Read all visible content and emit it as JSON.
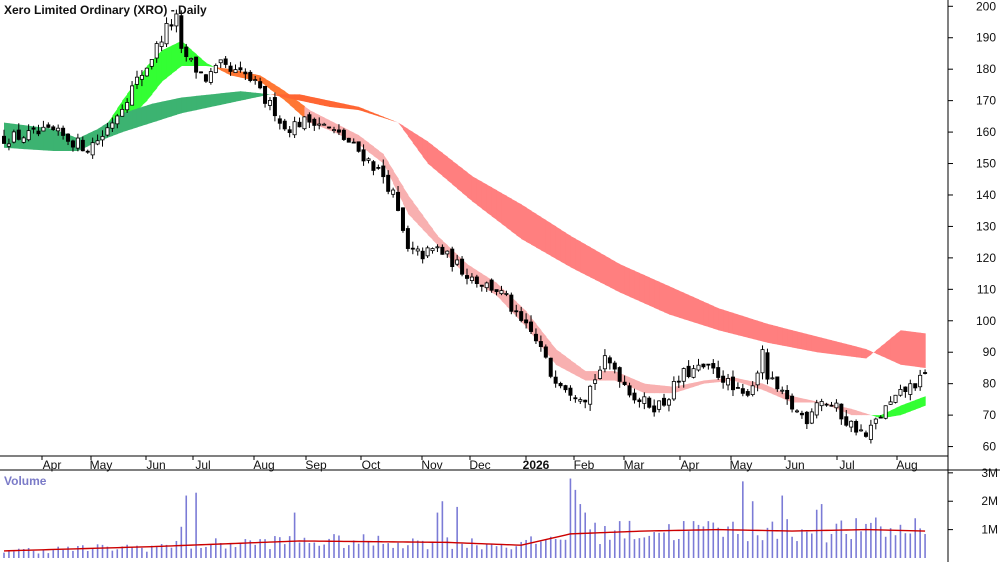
{
  "chart_data": {
    "type": "candlestick",
    "title": "Xero Limited Ordinary (XRO) - Daily",
    "x_tick_labels": [
      "Apr",
      "May",
      "Jun",
      "Jul",
      "Aug",
      "Sep",
      "Oct",
      "Nov",
      "Dec",
      "2026",
      "Feb",
      "Mar",
      "Apr",
      "May",
      "Jun",
      "Jul",
      "Aug"
    ],
    "y_tick_labels": [
      "200",
      "190",
      "180",
      "170",
      "160",
      "150",
      "140",
      "130",
      "120",
      "110",
      "100",
      "90",
      "80",
      "70",
      "60"
    ],
    "ylim": [
      57,
      202
    ],
    "price_path": [
      [
        0,
        158
      ],
      [
        10,
        160
      ],
      [
        14,
        157
      ],
      [
        17,
        155
      ],
      [
        20,
        159
      ],
      [
        23,
        166
      ],
      [
        26,
        174
      ],
      [
        29,
        181
      ],
      [
        31,
        187
      ],
      [
        33,
        193
      ],
      [
        35,
        196
      ],
      [
        36,
        185
      ],
      [
        37,
        184
      ],
      [
        39,
        180
      ],
      [
        41,
        177
      ],
      [
        44,
        181
      ],
      [
        46,
        179
      ],
      [
        49,
        178
      ],
      [
        51,
        175
      ],
      [
        53,
        170
      ],
      [
        55,
        167
      ],
      [
        57,
        161
      ],
      [
        60,
        163
      ],
      [
        63,
        164
      ],
      [
        66,
        161
      ],
      [
        69,
        158
      ],
      [
        72,
        154
      ],
      [
        74,
        151
      ],
      [
        77,
        146
      ],
      [
        79,
        140
      ],
      [
        82,
        122
      ],
      [
        85,
        121
      ],
      [
        88,
        123
      ],
      [
        91,
        119
      ],
      [
        94,
        115
      ],
      [
        97,
        112
      ],
      [
        100,
        110
      ],
      [
        102,
        107
      ],
      [
        104,
        101
      ],
      [
        107,
        96
      ],
      [
        109,
        91
      ],
      [
        111,
        83
      ],
      [
        113,
        81
      ],
      [
        115,
        78
      ],
      [
        118,
        76
      ],
      [
        120,
        82
      ],
      [
        122,
        87
      ],
      [
        124,
        85
      ],
      [
        126,
        80
      ],
      [
        128,
        76
      ],
      [
        130,
        74
      ],
      [
        132,
        73
      ],
      [
        134,
        74
      ],
      [
        136,
        79
      ],
      [
        138,
        83
      ],
      [
        140,
        84
      ],
      [
        142,
        85
      ],
      [
        144,
        84
      ],
      [
        146,
        82
      ],
      [
        148,
        78
      ],
      [
        150,
        76
      ],
      [
        152,
        80
      ],
      [
        154,
        89
      ],
      [
        155,
        82
      ],
      [
        157,
        78
      ],
      [
        159,
        74
      ],
      [
        161,
        71
      ],
      [
        163,
        69
      ],
      [
        165,
        75
      ],
      [
        167,
        74
      ],
      [
        169,
        72
      ],
      [
        171,
        68
      ],
      [
        173,
        66
      ],
      [
        175,
        63
      ],
      [
        177,
        68
      ],
      [
        179,
        72
      ],
      [
        181,
        75
      ],
      [
        183,
        78
      ],
      [
        185,
        80
      ],
      [
        187,
        82
      ]
    ],
    "series": [
      {
        "type": "band",
        "colors": {
          "up": "#33ff33",
          "down": "#ff7733"
        },
        "fast": [
          [
            0,
            159
          ],
          [
            15,
            156
          ],
          [
            19,
            158
          ],
          [
            24,
            170
          ],
          [
            29,
            181
          ],
          [
            32,
            186
          ],
          [
            36,
            189
          ],
          [
            41,
            182
          ],
          [
            46,
            178
          ],
          [
            52,
            176
          ],
          [
            57,
            170
          ],
          [
            62,
            163
          ],
          [
            67,
            160
          ],
          [
            72,
            156
          ],
          [
            77,
            150
          ],
          [
            82,
            134
          ],
          [
            88,
            124
          ],
          [
            94,
            114
          ],
          [
            100,
            108
          ],
          [
            106,
            98
          ],
          [
            112,
            86
          ],
          [
            118,
            81
          ],
          [
            124,
            81
          ],
          [
            130,
            77
          ],
          [
            136,
            77
          ],
          [
            142,
            80
          ],
          [
            148,
            81
          ],
          [
            154,
            78
          ],
          [
            160,
            74
          ],
          [
            166,
            74
          ],
          [
            172,
            70
          ],
          [
            178,
            70
          ],
          [
            182,
            73
          ],
          [
            187,
            76
          ]
        ],
        "slow": [
          [
            0,
            163
          ],
          [
            15,
            155
          ],
          [
            19,
            157
          ],
          [
            24,
            162
          ],
          [
            29,
            170
          ],
          [
            32,
            176
          ],
          [
            36,
            181
          ],
          [
            41,
            181
          ],
          [
            46,
            180
          ],
          [
            52,
            178
          ],
          [
            57,
            173
          ],
          [
            62,
            167
          ],
          [
            67,
            163
          ],
          [
            72,
            159
          ],
          [
            77,
            153
          ],
          [
            82,
            140
          ],
          [
            88,
            127
          ],
          [
            94,
            118
          ],
          [
            100,
            112
          ],
          [
            106,
            103
          ],
          [
            112,
            91
          ],
          [
            118,
            84
          ],
          [
            124,
            84
          ],
          [
            130,
            80
          ],
          [
            136,
            79
          ],
          [
            142,
            81
          ],
          [
            148,
            82
          ],
          [
            154,
            80
          ],
          [
            160,
            76
          ],
          [
            166,
            74
          ],
          [
            172,
            72
          ],
          [
            178,
            69
          ],
          [
            182,
            70
          ],
          [
            187,
            73
          ]
        ]
      },
      {
        "type": "band",
        "colors": {
          "up": "#3cb371",
          "down": "#ff6633"
        },
        "fast": [
          [
            0,
            163
          ],
          [
            10,
            161
          ],
          [
            15,
            158
          ],
          [
            19,
            161
          ],
          [
            24,
            166
          ],
          [
            30,
            169
          ],
          [
            36,
            171
          ],
          [
            42,
            172
          ],
          [
            48,
            173
          ],
          [
            54,
            172
          ],
          [
            60,
            170
          ],
          [
            66,
            168
          ],
          [
            72,
            167
          ],
          [
            80,
            163
          ],
          [
            86,
            157
          ],
          [
            95,
            146
          ],
          [
            105,
            137
          ],
          [
            115,
            127
          ],
          [
            125,
            118
          ],
          [
            135,
            111
          ],
          [
            145,
            104
          ],
          [
            155,
            99
          ],
          [
            165,
            95
          ],
          [
            175,
            91
          ],
          [
            182,
            86
          ],
          [
            187,
            85
          ]
        ],
        "slow": [
          [
            0,
            155
          ],
          [
            10,
            154
          ],
          [
            15,
            154
          ],
          [
            19,
            157
          ],
          [
            24,
            160
          ],
          [
            30,
            163
          ],
          [
            36,
            166
          ],
          [
            42,
            168
          ],
          [
            48,
            170
          ],
          [
            54,
            172
          ],
          [
            60,
            172
          ],
          [
            66,
            170
          ],
          [
            72,
            168
          ],
          [
            80,
            163
          ],
          [
            86,
            150
          ],
          [
            95,
            138
          ],
          [
            105,
            126
          ],
          [
            115,
            117
          ],
          [
            125,
            109
          ],
          [
            135,
            102
          ],
          [
            145,
            97
          ],
          [
            155,
            93
          ],
          [
            165,
            90
          ],
          [
            175,
            88
          ],
          [
            182,
            97
          ],
          [
            187,
            96
          ]
        ]
      }
    ],
    "volume": {
      "label": "Volume",
      "y_tick_labels": [
        "3M",
        "2M",
        "1M"
      ],
      "ylim": [
        0,
        3.1
      ],
      "average": [
        [
          0,
          0.25
        ],
        [
          30,
          0.4
        ],
        [
          60,
          0.6
        ],
        [
          90,
          0.55
        ],
        [
          105,
          0.45
        ],
        [
          115,
          0.85
        ],
        [
          130,
          0.95
        ],
        [
          145,
          1.0
        ],
        [
          160,
          0.95
        ],
        [
          175,
          1.0
        ],
        [
          187,
          0.95
        ]
      ],
      "spikes": [
        [
          36,
          1.1
        ],
        [
          37,
          2.2
        ],
        [
          39,
          2.3
        ],
        [
          59,
          1.6
        ],
        [
          88,
          1.6
        ],
        [
          89,
          2.0
        ],
        [
          92,
          1.8
        ],
        [
          115,
          2.8
        ],
        [
          116,
          2.4
        ],
        [
          117,
          1.9
        ],
        [
          118,
          1.6
        ],
        [
          125,
          1.3
        ],
        [
          140,
          1.3
        ],
        [
          150,
          2.7
        ],
        [
          152,
          2.0
        ],
        [
          158,
          2.2
        ],
        [
          165,
          1.7
        ],
        [
          166,
          1.9
        ],
        [
          175,
          1.2
        ],
        [
          185,
          1.4
        ]
      ]
    }
  }
}
